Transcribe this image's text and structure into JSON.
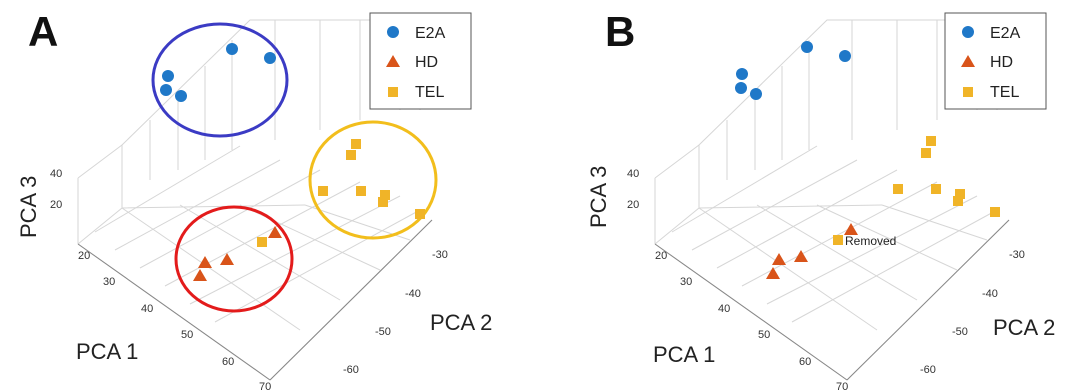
{
  "chart_data": [
    {
      "type": "scatter",
      "panel_label": "A",
      "xlabel": "PCA 1",
      "ylabel": "PCA 2",
      "zlabel": "PCA 3",
      "x_ticks": [
        "20",
        "30",
        "40",
        "50",
        "60",
        "70"
      ],
      "y_ticks": [
        "-30",
        "-40",
        "-50",
        "-60"
      ],
      "z_ticks": [
        "40",
        "20"
      ],
      "legend": [
        "E2A",
        "HD",
        "TEL"
      ],
      "legend_position": "top-right",
      "grid": true,
      "cluster_ellipses": [
        {
          "cluster": "E2A",
          "color": "#3b3bc4"
        },
        {
          "cluster": "HD",
          "color": "#e31b1b"
        },
        {
          "cluster": "TEL",
          "color": "#f2be1c"
        }
      ],
      "series": [
        {
          "name": "E2A",
          "color": "#1f78c8",
          "marker": "circle"
        },
        {
          "name": "HD",
          "color": "#d9541a",
          "marker": "triangle"
        },
        {
          "name": "TEL",
          "color": "#f0b428",
          "marker": "square"
        }
      ]
    },
    {
      "type": "scatter",
      "panel_label": "B",
      "xlabel": "PCA 1",
      "ylabel": "PCA 2",
      "zlabel": "PCA 3",
      "x_ticks": [
        "20",
        "30",
        "40",
        "50",
        "60",
        "70"
      ],
      "y_ticks": [
        "-30",
        "-40",
        "-50",
        "-60"
      ],
      "z_ticks": [
        "40",
        "20"
      ],
      "legend": [
        "E2A",
        "HD",
        "TEL"
      ],
      "legend_position": "top-right",
      "grid": true,
      "annotation": "Removed",
      "series": [
        {
          "name": "E2A",
          "color": "#1f78c8",
          "marker": "circle"
        },
        {
          "name": "HD",
          "color": "#d9541a",
          "marker": "triangle"
        },
        {
          "name": "TEL",
          "color": "#f0b428",
          "marker": "square"
        }
      ]
    }
  ]
}
